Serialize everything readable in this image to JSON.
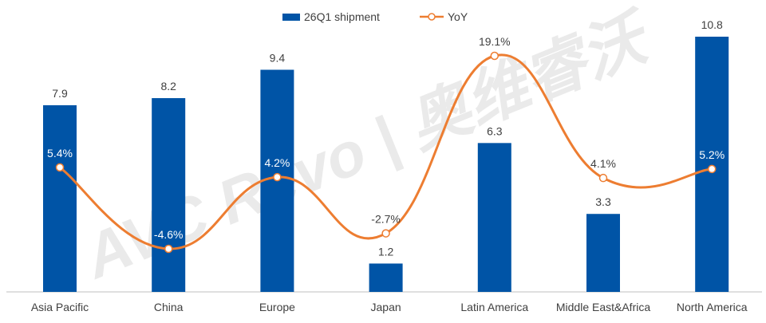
{
  "watermark": {
    "text": "AVC Revo | 奥维睿沃"
  },
  "legend": {
    "bar_label": "26Q1 shipment",
    "line_label": "YoY"
  },
  "colors": {
    "bar": "#0054a6",
    "line": "#ed7d31",
    "axis": "#bfbfbf"
  },
  "chart_data": {
    "type": "bar",
    "categories": [
      "Asia Pacific",
      "China",
      "Europe",
      "Japan",
      "Latin America",
      "Middle East&Africa",
      "North America"
    ],
    "series": [
      {
        "name": "26Q1 shipment",
        "type": "bar",
        "values": [
          7.9,
          8.2,
          9.4,
          1.2,
          6.3,
          3.3,
          10.8
        ],
        "labels": [
          "7.9",
          "8.2",
          "9.4",
          "1.2",
          "6.3",
          "3.3",
          "10.8"
        ]
      },
      {
        "name": "YoY",
        "type": "line",
        "smooth": true,
        "values": [
          5.4,
          -4.6,
          4.2,
          -2.7,
          19.1,
          4.1,
          5.2
        ],
        "labels": [
          "5.4%",
          "-4.6%",
          "4.2%",
          "-2.7%",
          "19.1%",
          "4.1%",
          "5.2%"
        ]
      }
    ],
    "legend_position": "top-center",
    "grid": false
  }
}
